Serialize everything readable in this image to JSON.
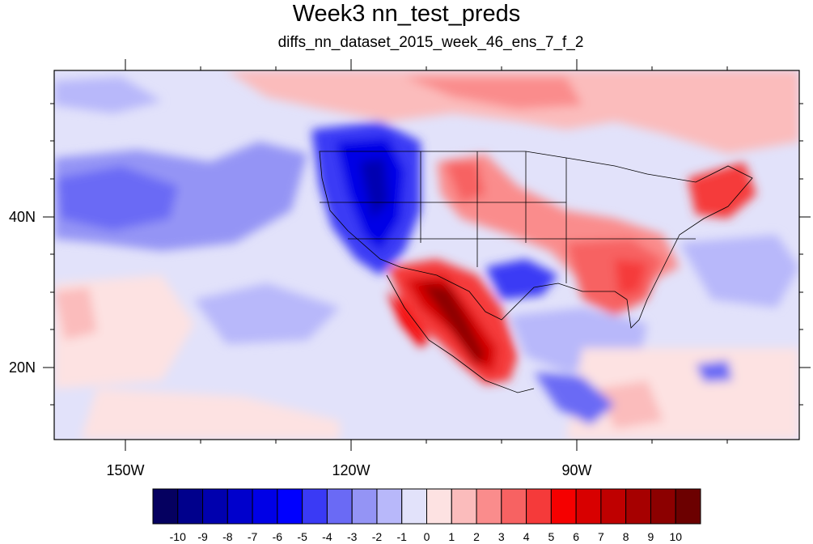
{
  "title": "Week3 nn_test_preds",
  "subtitle": "diffs_nn_dataset_2015_week_46_ens_7_f_2",
  "map": {
    "lon_labels": [
      "150W",
      "120W",
      "90W"
    ],
    "lat_labels": [
      "40N",
      "20N"
    ],
    "regions": [
      {
        "name": "pacific-negative-anomaly",
        "value": -3
      },
      {
        "name": "pacific-deep-negative-core",
        "value": -4
      },
      {
        "name": "northwest-us-strong-negative",
        "value": -7
      },
      {
        "name": "northwest-us-core",
        "value": -9
      },
      {
        "name": "southwest-mexico-strong-positive",
        "value": 7
      },
      {
        "name": "southwest-mexico-core",
        "value": 10
      },
      {
        "name": "texas-negative-anomaly",
        "value": -5
      },
      {
        "name": "central-us-positive",
        "value": 3
      },
      {
        "name": "southeast-us-positive",
        "value": 4
      },
      {
        "name": "northeast-us-positive",
        "value": 5
      },
      {
        "name": "canada-positive",
        "value": 3
      },
      {
        "name": "gulf-negative",
        "value": -2
      },
      {
        "name": "central-america-negative",
        "value": -6
      }
    ]
  },
  "colorbar": {
    "labels": [
      "-10",
      "-9",
      "-8",
      "-7",
      "-6",
      "-5",
      "-4",
      "-3",
      "-2",
      "-1",
      "0",
      "1",
      "2",
      "3",
      "4",
      "5",
      "6",
      "7",
      "8",
      "9",
      "10"
    ],
    "colors": [
      "#050060",
      "#00008c",
      "#0000ae",
      "#0000cc",
      "#0000e6",
      "#0000ff",
      "#3a3af5",
      "#6a6af5",
      "#9494f5",
      "#b8b8fa",
      "#e2e2fa",
      "#fde2e2",
      "#fbbcbc",
      "#fa8c8c",
      "#f76262",
      "#f53a3a",
      "#f50000",
      "#d80000",
      "#bf0000",
      "#a60000",
      "#8c0000",
      "#6c0000"
    ]
  }
}
